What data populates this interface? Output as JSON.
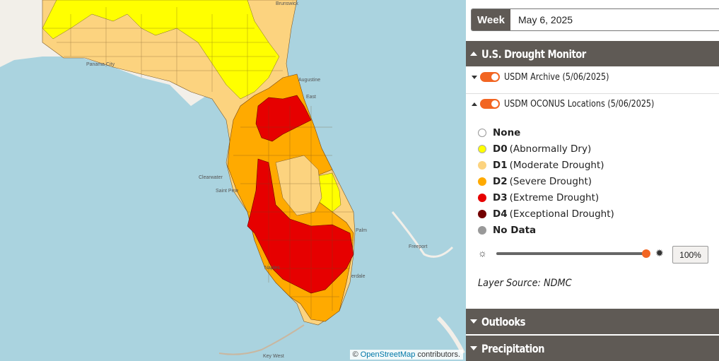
{
  "map": {
    "attribution_prefix": "©",
    "attribution_link": "OpenStreetMap",
    "attribution_suffix": "contributors.",
    "places": [
      {
        "label": "Brunswick"
      },
      {
        "label": "Panama City"
      },
      {
        "label": "Augustine"
      },
      {
        "label": "East"
      },
      {
        "label": "Clearwater"
      },
      {
        "label": "Saint Pete"
      },
      {
        "label": "Freeport"
      },
      {
        "label": "Key West"
      },
      {
        "label": "Palm"
      },
      {
        "label": "Naples"
      },
      {
        "label": "erdale"
      }
    ],
    "colors": {
      "water": "#aad3df",
      "land": "#f2efe9",
      "d0": "#ffff00",
      "d1": "#fcd37f",
      "d2": "#ffaa00",
      "d3": "#e60000",
      "d4": "#730000"
    }
  },
  "panel": {
    "week_label": "Week",
    "week_value": "May 6, 2025",
    "section_drought": "U.S. Drought Monitor",
    "layers": [
      {
        "label": "USDM Archive (5/06/2025)",
        "enabled": true,
        "expanded": false
      },
      {
        "label": "USDM OCONUS Locations (5/06/2025)",
        "enabled": true,
        "expanded": true
      }
    ],
    "legend": [
      {
        "code": "None",
        "desc": "",
        "color": "#ffffff"
      },
      {
        "code": "D0",
        "desc": "(Abnormally Dry)",
        "color": "#ffff00"
      },
      {
        "code": "D1",
        "desc": "(Moderate Drought)",
        "color": "#fcd37f"
      },
      {
        "code": "D2",
        "desc": "(Severe Drought)",
        "color": "#ffaa00"
      },
      {
        "code": "D3",
        "desc": "(Extreme Drought)",
        "color": "#e60000"
      },
      {
        "code": "D4",
        "desc": "(Exceptional Drought)",
        "color": "#730000"
      },
      {
        "code": "No Data",
        "desc": "",
        "color": "#999999"
      }
    ],
    "opacity_value": "100%",
    "opacity_fraction": 1.0,
    "layer_source": "Layer Source: NDMC",
    "section_outlooks": "Outlooks",
    "section_precip": "Precipitation",
    "accent": "#f26522",
    "bar_color": "#5f5a55"
  }
}
